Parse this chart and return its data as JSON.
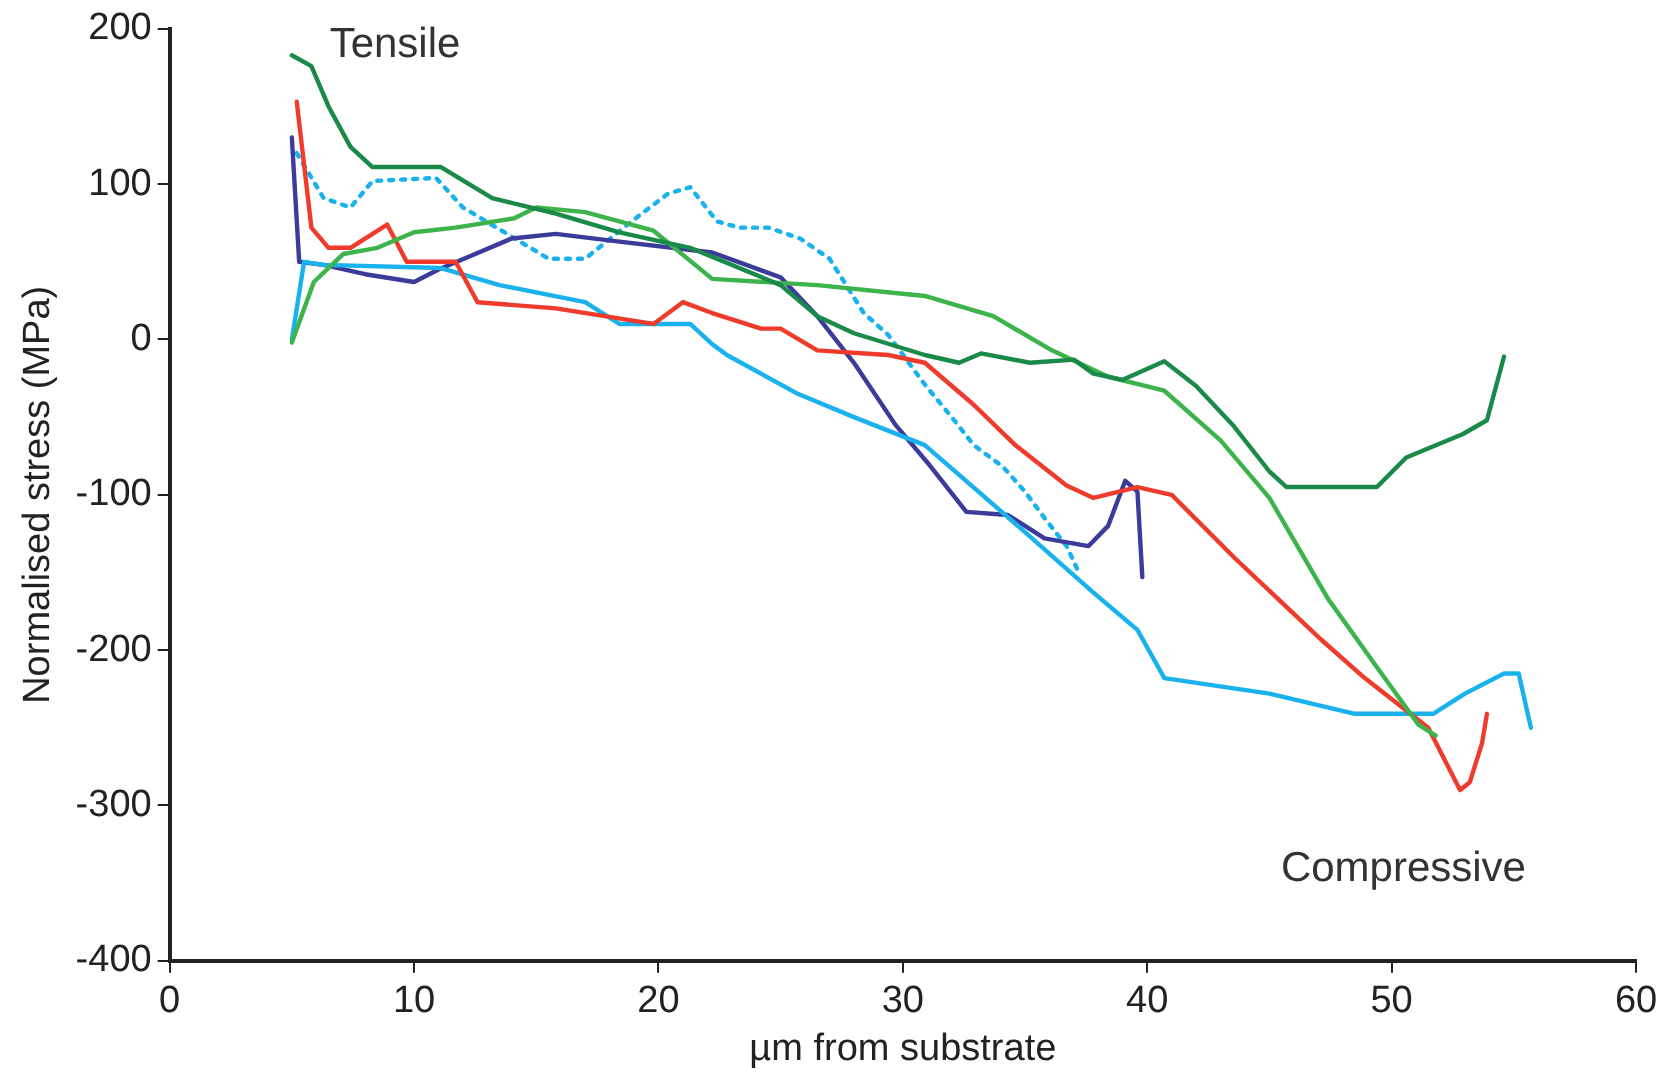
{
  "chart_data": {
    "type": "line",
    "xlabel": "µm from substrate",
    "ylabel": "Normalised stress (MPa)",
    "xlim": [
      0,
      60
    ],
    "xticks": [
      0,
      10,
      20,
      30,
      40,
      50,
      60
    ],
    "ylim": [
      -400,
      200
    ],
    "yticks": [
      -400,
      -300,
      -200,
      -100,
      0,
      100,
      200
    ],
    "grid": false,
    "legend": false,
    "marker": "none",
    "annotations": [
      "Tensile",
      "Compressive"
    ],
    "series": [
      {
        "color": "#1a8a4a",
        "line_style": "solid",
        "x": [
          5,
          5.8,
          6.5,
          7.4,
          8.3,
          11.1,
          13.2,
          15.8,
          18.4,
          21.3,
          25,
          26.5,
          28,
          30.9,
          32.3,
          33.2,
          35.2,
          37,
          37.8,
          39,
          40.7,
          42,
          43.5,
          45,
          45.7,
          47,
          49.4,
          50.6,
          52.9,
          53.9,
          54.6
        ],
        "values": [
          183,
          176,
          150,
          124,
          111,
          111,
          91,
          81,
          69,
          59,
          35,
          15,
          4,
          -10,
          -15,
          -9,
          -15,
          -13,
          -22,
          -26,
          -14,
          -30,
          -55,
          -85,
          -95,
          -95,
          -95,
          -76,
          -61,
          -52,
          -11
        ]
      },
      {
        "color": "#3cb44b",
        "line_style": "solid",
        "x": [
          5,
          5.9,
          7.1,
          8.5,
          10,
          11.7,
          14.1,
          15,
          17,
          19.8,
          22.2,
          26.5,
          30.9,
          33.7,
          36.1,
          38.4,
          40.7,
          43,
          45,
          47.4,
          49.4,
          51.1,
          51.8
        ],
        "values": [
          -2,
          37,
          55,
          59,
          69,
          72,
          78,
          85,
          82,
          70,
          39,
          35,
          28,
          15,
          -7,
          -24,
          -33,
          -65,
          -102,
          -167,
          -211,
          -248,
          -255
        ]
      },
      {
        "color": "#ef3b2c",
        "line_style": "solid",
        "x": [
          5.2,
          5.8,
          6.5,
          7.4,
          8.9,
          9.7,
          11.7,
          12.6,
          15.8,
          19.8,
          21,
          22.2,
          24.2,
          25,
          26.5,
          29.4,
          30.9,
          32.9,
          34.6,
          36.7,
          37.8,
          39.6,
          41,
          43.6,
          47.1,
          48.9,
          51.5,
          52.8,
          53.2,
          53.7,
          53.9
        ],
        "values": [
          153,
          72,
          59,
          59,
          74,
          50,
          50,
          24,
          20,
          10,
          24,
          17,
          7,
          7,
          -7,
          -10,
          -15,
          -42,
          -68,
          -94,
          -102,
          -95,
          -100,
          -141,
          -193,
          -218,
          -250,
          -290,
          -285,
          -260,
          -241
        ]
      },
      {
        "color": "#1ab2ec",
        "line_style": "solid",
        "x": [
          5,
          5.5,
          6.3,
          11.1,
          13.5,
          17,
          18.4,
          21.3,
          22.2,
          22.8,
          25.7,
          28,
          30.9,
          35,
          37.8,
          39.6,
          40.7,
          45,
          48.5,
          51.7,
          53,
          54.6,
          55.2,
          55.7
        ],
        "values": [
          0,
          50,
          48,
          46,
          35,
          24,
          10,
          10,
          -3,
          -10,
          -35,
          -50,
          -68,
          -124,
          -163,
          -187,
          -218,
          -228,
          -241,
          -241,
          -228,
          -215,
          -215,
          -250
        ]
      },
      {
        "color": "#3b3b9a",
        "line_style": "solid",
        "x": [
          5,
          5.3,
          6.3,
          8,
          10,
          11,
          14,
          15.8,
          18.4,
          22.2,
          25,
          26.5,
          28,
          29.7,
          31.1,
          32.6,
          34.3,
          35.8,
          37.6,
          38.4,
          39.1,
          39.6,
          39.8
        ],
        "values": [
          130,
          50,
          48,
          42,
          37,
          45,
          65,
          68,
          63,
          56,
          40,
          15,
          -15,
          -55,
          -81,
          -111,
          -113,
          -128,
          -133,
          -120,
          -91,
          -98,
          -153
        ]
      },
      {
        "color": "#1ab2ec",
        "line_style": "dotted",
        "x": [
          5.2,
          6.3,
          7.4,
          8.3,
          10.9,
          12,
          15.5,
          17,
          18.9,
          20.4,
          21.3,
          22.4,
          23.3,
          24.5,
          25.8,
          27,
          27.6,
          28.4,
          29.4,
          30.9,
          32,
          32.9,
          34.1,
          35,
          35.8,
          36.7,
          37.2
        ],
        "values": [
          120,
          91,
          85,
          102,
          104,
          85,
          52,
          52,
          76,
          94,
          98,
          76,
          72,
          72,
          65,
          52,
          37,
          17,
          3,
          -29,
          -50,
          -68,
          -82,
          -98,
          -115,
          -133,
          -150
        ]
      }
    ]
  }
}
